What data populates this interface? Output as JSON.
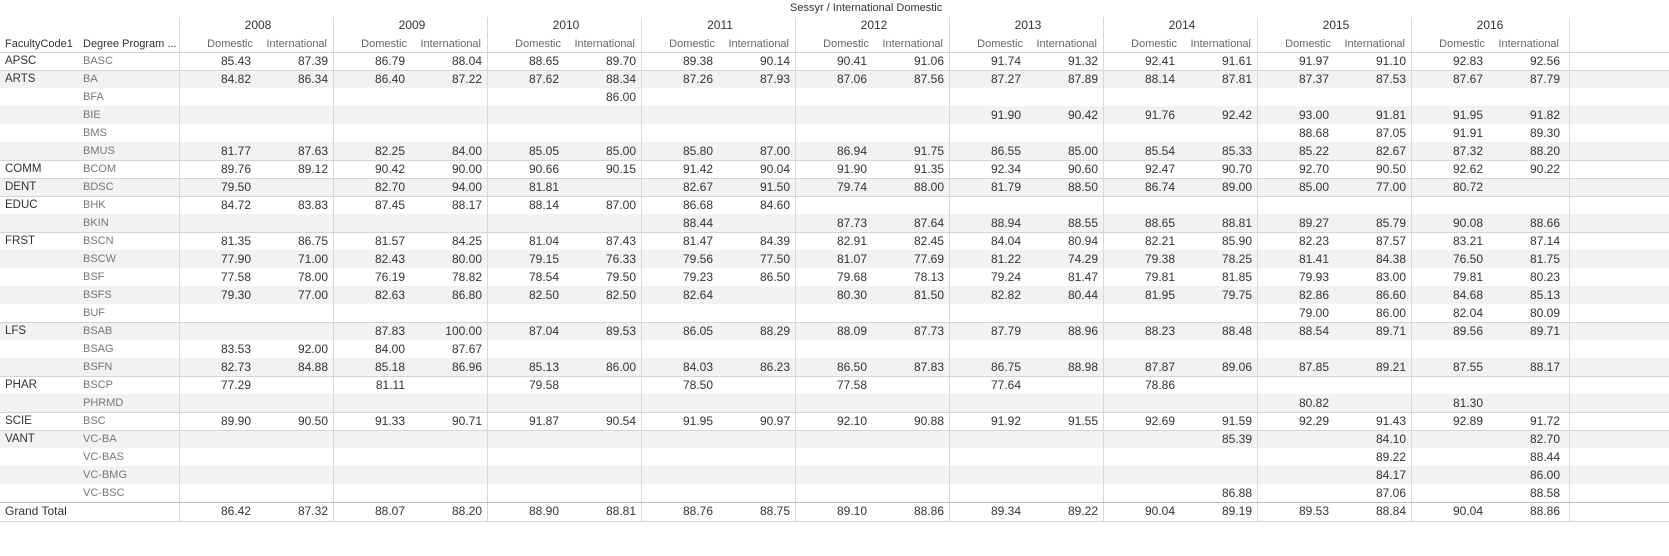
{
  "header": {
    "title": "Sessyr / International Domestic",
    "row_labels": [
      "FacultyCode1",
      "Degree Program ..."
    ],
    "sub_columns": [
      "Domestic",
      "International"
    ]
  },
  "years": [
    "2008",
    "2009",
    "2010",
    "2011",
    "2012",
    "2013",
    "2014",
    "2015",
    "2016"
  ],
  "rows": [
    {
      "faculty": "APSC",
      "degree": "BASC",
      "values": [
        "85.43",
        "87.39",
        "86.79",
        "88.04",
        "88.65",
        "89.70",
        "89.38",
        "90.14",
        "90.41",
        "91.06",
        "91.74",
        "91.32",
        "92.41",
        "91.61",
        "91.97",
        "91.10",
        "92.83",
        "92.56"
      ]
    },
    {
      "faculty": "ARTS",
      "degree": "BA",
      "values": [
        "84.82",
        "86.34",
        "86.40",
        "87.22",
        "87.62",
        "88.34",
        "87.26",
        "87.93",
        "87.06",
        "87.56",
        "87.27",
        "87.89",
        "88.14",
        "87.81",
        "87.37",
        "87.53",
        "87.67",
        "87.79"
      ]
    },
    {
      "faculty": "",
      "degree": "BFA",
      "values": [
        "",
        "",
        "",
        "",
        "",
        "86.00",
        "",
        "",
        "",
        "",
        "",
        "",
        "",
        "",
        "",
        "",
        "",
        ""
      ]
    },
    {
      "faculty": "",
      "degree": "BIE",
      "values": [
        "",
        "",
        "",
        "",
        "",
        "",
        "",
        "",
        "",
        "",
        "91.90",
        "90.42",
        "91.76",
        "92.42",
        "93.00",
        "91.81",
        "91.95",
        "91.82"
      ]
    },
    {
      "faculty": "",
      "degree": "BMS",
      "values": [
        "",
        "",
        "",
        "",
        "",
        "",
        "",
        "",
        "",
        "",
        "",
        "",
        "",
        "",
        "88.68",
        "87.05",
        "91.91",
        "89.30"
      ]
    },
    {
      "faculty": "",
      "degree": "BMUS",
      "values": [
        "81.77",
        "87.63",
        "82.25",
        "84.00",
        "85.05",
        "85.00",
        "85.80",
        "87.00",
        "86.94",
        "91.75",
        "86.55",
        "85.00",
        "85.54",
        "85.33",
        "85.22",
        "82.67",
        "87.32",
        "88.20"
      ]
    },
    {
      "faculty": "COMM",
      "degree": "BCOM",
      "values": [
        "89.76",
        "89.12",
        "90.42",
        "90.00",
        "90.66",
        "90.15",
        "91.42",
        "90.04",
        "91.90",
        "91.35",
        "92.34",
        "90.60",
        "92.47",
        "90.70",
        "92.70",
        "90.50",
        "92.62",
        "90.22"
      ]
    },
    {
      "faculty": "DENT",
      "degree": "BDSC",
      "values": [
        "79.50",
        "",
        "82.70",
        "94.00",
        "81.81",
        "",
        "82.67",
        "91.50",
        "79.74",
        "88.00",
        "81.79",
        "88.50",
        "86.74",
        "89.00",
        "85.00",
        "77.00",
        "80.72",
        ""
      ]
    },
    {
      "faculty": "EDUC",
      "degree": "BHK",
      "values": [
        "84.72",
        "83.83",
        "87.45",
        "88.17",
        "88.14",
        "87.00",
        "86.68",
        "84.60",
        "",
        "",
        "",
        "",
        "",
        "",
        "",
        "",
        "",
        ""
      ]
    },
    {
      "faculty": "",
      "degree": "BKIN",
      "values": [
        "",
        "",
        "",
        "",
        "",
        "",
        "88.44",
        "",
        "87.73",
        "87.64",
        "88.94",
        "88.55",
        "88.65",
        "88.81",
        "89.27",
        "85.79",
        "90.08",
        "88.66"
      ]
    },
    {
      "faculty": "FRST",
      "degree": "BSCN",
      "values": [
        "81.35",
        "86.75",
        "81.57",
        "84.25",
        "81.04",
        "87.43",
        "81.47",
        "84.39",
        "82.91",
        "82.45",
        "84.04",
        "80.94",
        "82.21",
        "85.90",
        "82.23",
        "87.57",
        "83.21",
        "87.14"
      ]
    },
    {
      "faculty": "",
      "degree": "BSCW",
      "values": [
        "77.90",
        "71.00",
        "82.43",
        "80.00",
        "79.15",
        "76.33",
        "79.56",
        "77.50",
        "81.07",
        "77.69",
        "81.22",
        "74.29",
        "79.38",
        "78.25",
        "81.41",
        "84.38",
        "76.50",
        "81.75"
      ]
    },
    {
      "faculty": "",
      "degree": "BSF",
      "values": [
        "77.58",
        "78.00",
        "76.19",
        "78.82",
        "78.54",
        "79.50",
        "79.23",
        "86.50",
        "79.68",
        "78.13",
        "79.24",
        "81.47",
        "79.81",
        "81.85",
        "79.93",
        "83.00",
        "79.81",
        "80.23"
      ]
    },
    {
      "faculty": "",
      "degree": "BSFS",
      "values": [
        "79.30",
        "77.00",
        "82.63",
        "86.80",
        "82.50",
        "82.50",
        "82.64",
        "",
        "80.30",
        "81.50",
        "82.82",
        "80.44",
        "81.95",
        "79.75",
        "82.86",
        "86.60",
        "84.68",
        "85.13"
      ]
    },
    {
      "faculty": "",
      "degree": "BUF",
      "values": [
        "",
        "",
        "",
        "",
        "",
        "",
        "",
        "",
        "",
        "",
        "",
        "",
        "",
        "",
        "79.00",
        "86.00",
        "82.04",
        "80.09"
      ]
    },
    {
      "faculty": "LFS",
      "degree": "BSAB",
      "values": [
        "",
        "",
        "87.83",
        "100.00",
        "87.04",
        "89.53",
        "86.05",
        "88.29",
        "88.09",
        "87.73",
        "87.79",
        "88.96",
        "88.23",
        "88.48",
        "88.54",
        "89.71",
        "89.56",
        "89.71"
      ]
    },
    {
      "faculty": "",
      "degree": "BSAG",
      "values": [
        "83.53",
        "92.00",
        "84.00",
        "87.67",
        "",
        "",
        "",
        "",
        "",
        "",
        "",
        "",
        "",
        "",
        "",
        "",
        "",
        ""
      ]
    },
    {
      "faculty": "",
      "degree": "BSFN",
      "values": [
        "82.73",
        "84.88",
        "85.18",
        "86.96",
        "85.13",
        "86.00",
        "84.03",
        "86.23",
        "86.50",
        "87.83",
        "86.75",
        "88.98",
        "87.87",
        "89.06",
        "87.85",
        "89.21",
        "87.55",
        "88.17"
      ]
    },
    {
      "faculty": "PHAR",
      "degree": "BSCP",
      "values": [
        "77.29",
        "",
        "81.11",
        "",
        "79.58",
        "",
        "78.50",
        "",
        "77.58",
        "",
        "77.64",
        "",
        "78.86",
        "",
        "",
        "",
        "",
        ""
      ]
    },
    {
      "faculty": "",
      "degree": "PHRMD",
      "values": [
        "",
        "",
        "",
        "",
        "",
        "",
        "",
        "",
        "",
        "",
        "",
        "",
        "",
        "",
        "80.82",
        "",
        "81.30",
        ""
      ]
    },
    {
      "faculty": "SCIE",
      "degree": "BSC",
      "values": [
        "89.90",
        "90.50",
        "91.33",
        "90.71",
        "91.87",
        "90.54",
        "91.95",
        "90.97",
        "92.10",
        "90.88",
        "91.92",
        "91.55",
        "92.69",
        "91.59",
        "92.29",
        "91.43",
        "92.89",
        "91.72"
      ]
    },
    {
      "faculty": "VANT",
      "degree": "VC-BA",
      "values": [
        "",
        "",
        "",
        "",
        "",
        "",
        "",
        "",
        "",
        "",
        "",
        "",
        "",
        "85.39",
        "",
        "84.10",
        "",
        "82.70"
      ]
    },
    {
      "faculty": "",
      "degree": "VC-BAS",
      "values": [
        "",
        "",
        "",
        "",
        "",
        "",
        "",
        "",
        "",
        "",
        "",
        "",
        "",
        "",
        "",
        "89.22",
        "",
        "88.44"
      ]
    },
    {
      "faculty": "",
      "degree": "VC-BMG",
      "values": [
        "",
        "",
        "",
        "",
        "",
        "",
        "",
        "",
        "",
        "",
        "",
        "",
        "",
        "",
        "",
        "84.17",
        "",
        "86.00"
      ]
    },
    {
      "faculty": "",
      "degree": "VC-BSC",
      "values": [
        "",
        "",
        "",
        "",
        "",
        "",
        "",
        "",
        "",
        "",
        "",
        "",
        "",
        "86.88",
        "",
        "87.06",
        "",
        "88.58"
      ]
    }
  ],
  "grand_total": {
    "label": "Grand Total",
    "values": [
      "86.42",
      "87.32",
      "88.07",
      "88.20",
      "88.90",
      "88.81",
      "88.76",
      "88.75",
      "89.10",
      "88.86",
      "89.34",
      "89.22",
      "90.04",
      "89.19",
      "89.53",
      "88.84",
      "90.04",
      "88.86"
    ]
  }
}
